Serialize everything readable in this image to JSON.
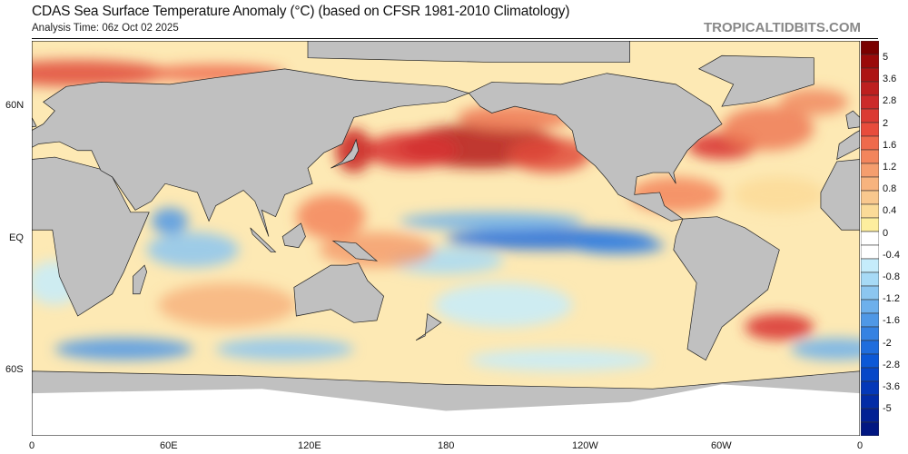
{
  "header": {
    "title": "CDAS Sea Surface Temperature Anomaly (°C) (based on CFSR 1981-2010 Climatology)",
    "subtitle": "Analysis Time: 06z Oct 02 2025",
    "brand": "TROPICALTIDBITS.COM"
  },
  "map": {
    "projection": "equirectangular",
    "lon_range": [
      0,
      360
    ],
    "land_color": "#c0c0c0",
    "lat_labels": [
      "60N",
      "EQ",
      "60S"
    ],
    "lon_labels": [
      "0",
      "60E",
      "120E",
      "180",
      "120W",
      "60W",
      "0"
    ]
  },
  "colorbar": {
    "labels": [
      "5",
      "3.6",
      "2.8",
      "2",
      "1.6",
      "1.2",
      "0.8",
      "0.4",
      "0",
      "-0.4",
      "-0.8",
      "-1.2",
      "-1.6",
      "-2",
      "-2.8",
      "-3.6",
      "-5"
    ],
    "colors": [
      "#7a0000",
      "#9a0a0a",
      "#ad1414",
      "#bd1f1f",
      "#cc2a2a",
      "#db3a33",
      "#e84c3c",
      "#ef6a4c",
      "#f3855c",
      "#f59e6e",
      "#f7b37e",
      "#f9c88e",
      "#fbdb98",
      "#fdee9e",
      "#ffffff",
      "#ffffff",
      "#c5ecfb",
      "#a7daf6",
      "#8cc6f0",
      "#6db0ec",
      "#4f98e6",
      "#3582e2",
      "#1f6ddd",
      "#0c58d6",
      "#0647c8",
      "#0438b8",
      "#032ca6",
      "#022094",
      "#011782"
    ]
  }
}
